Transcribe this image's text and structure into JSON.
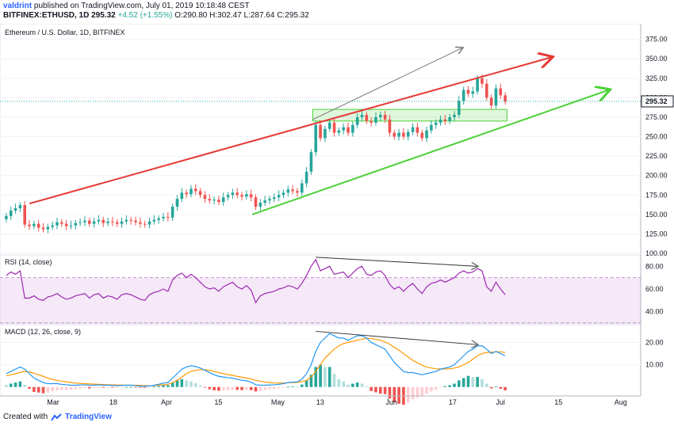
{
  "header": {
    "author": "valdrint",
    "published": "published on TradingView.com, July 01, 2019 10:18:48 CEST",
    "symbol": "BITFINEX:ETHUSD, 1D",
    "last": "295.32",
    "change": "+4.52 (+1.55%)",
    "ohlc": "O:290.80 H:302.47 L:287.64 C:295.32"
  },
  "footer": {
    "created_with": "Created with",
    "brand": "TradingView"
  },
  "colors": {
    "up": "#26a69a",
    "down": "#ef5350",
    "red_line": "#e53935",
    "green_line": "#4cd137",
    "rsi": "#9c27b0",
    "macd": "#2196f3",
    "signal": "#ff9800"
  },
  "chart_data": [
    {
      "type": "candlestick",
      "title": "Ethereum / U.S. Dollar, 1D, BITFINEX",
      "y_ticks": [
        "375.00",
        "350.00",
        "325.00",
        "300.00",
        "275.00",
        "250.00",
        "225.00",
        "200.00",
        "175.00",
        "150.00",
        "125.00",
        "100.00"
      ],
      "ylim": [
        100,
        395
      ],
      "last_price_label": "295.32",
      "x_ticks": [
        "Mar",
        "18",
        "Apr",
        "15",
        "May",
        "13",
        "Jun",
        "17",
        "Jul",
        "15",
        "Aug"
      ],
      "closes": [
        148,
        155,
        158,
        162,
        137,
        135,
        138,
        133,
        131,
        134,
        136,
        140,
        138,
        135,
        136,
        139,
        140,
        142,
        138,
        141,
        143,
        139,
        141,
        140,
        138,
        141,
        143,
        142,
        140,
        138,
        137,
        141,
        143,
        145,
        147,
        146,
        160,
        170,
        178,
        176,
        183,
        180,
        175,
        170,
        168,
        169,
        166,
        172,
        175,
        178,
        175,
        173,
        176,
        172,
        160,
        165,
        168,
        170,
        172,
        175,
        178,
        182,
        180,
        178,
        190,
        205,
        230,
        265,
        248,
        260,
        268,
        255,
        258,
        262,
        255,
        265,
        275,
        278,
        270,
        268,
        275,
        278,
        272,
        255,
        250,
        255,
        250,
        256,
        262,
        255,
        248,
        258,
        265,
        268,
        272,
        270,
        275,
        278,
        296,
        310,
        305,
        308,
        325,
        318,
        300,
        290,
        312,
        303,
        295
      ],
      "annotations": {
        "red_trendline": [
          [
            0.04,
            164
          ],
          [
            0.86,
            352
          ]
        ],
        "green_trendline": [
          [
            0.39,
            150
          ],
          [
            0.95,
            310
          ]
        ],
        "grey_arrow": [
          [
            0.485,
            272
          ],
          [
            0.72,
            364
          ]
        ],
        "green_box": [
          [
            0.485,
            270
          ],
          [
            0.79,
            285
          ]
        ]
      }
    },
    {
      "type": "line",
      "title": "RSI (14, close)",
      "y_ticks": [
        "80.00",
        "60.00",
        "40.00"
      ],
      "ylim": [
        30,
        90
      ],
      "band": [
        30,
        70
      ],
      "values": [
        72,
        75,
        73,
        76,
        52,
        52,
        54,
        51,
        50,
        53,
        54,
        56,
        53,
        51,
        52,
        54,
        55,
        56,
        52,
        55,
        56,
        52,
        54,
        53,
        51,
        55,
        56,
        55,
        53,
        51,
        50,
        55,
        57,
        58,
        60,
        58,
        68,
        72,
        74,
        70,
        73,
        70,
        66,
        62,
        60,
        61,
        58,
        62,
        64,
        66,
        62,
        60,
        63,
        59,
        48,
        54,
        56,
        57,
        58,
        60,
        61,
        63,
        62,
        60,
        65,
        72,
        80,
        86,
        76,
        78,
        80,
        73,
        74,
        75,
        70,
        74,
        78,
        80,
        73,
        72,
        75,
        76,
        72,
        64,
        60,
        62,
        58,
        62,
        65,
        60,
        56,
        62,
        65,
        66,
        68,
        66,
        68,
        70,
        74,
        76,
        74,
        75,
        78,
        76,
        62,
        58,
        66,
        60,
        55
      ]
    },
    {
      "type": "macd",
      "title": "MACD (12, 26, close, 9)",
      "y_ticks": [
        "20.00",
        "10.00"
      ],
      "ylim": [
        -4,
        28
      ],
      "macd": [
        6,
        7,
        8,
        9,
        8,
        6,
        4,
        3,
        2,
        1.5,
        1.5,
        1.5,
        1.2,
        1,
        0.8,
        0.8,
        0.9,
        1,
        0.8,
        0.8,
        1,
        0.8,
        0.8,
        0.7,
        0.6,
        0.7,
        0.8,
        0.8,
        0.6,
        0.4,
        0.3,
        0.5,
        0.8,
        1.2,
        1.8,
        2,
        4,
        6,
        8,
        9,
        9.5,
        9.2,
        8.5,
        7.5,
        6.5,
        5.5,
        4.8,
        4.5,
        4.2,
        4,
        3.5,
        3,
        2.8,
        2.2,
        1,
        0.8,
        0.8,
        0.9,
        1,
        1.2,
        1.5,
        2,
        2.2,
        2.3,
        3.5,
        6,
        10,
        16,
        20,
        22,
        24,
        23,
        22,
        22,
        21,
        22,
        23,
        23,
        22,
        20,
        19,
        18,
        17,
        14,
        11,
        9,
        7,
        6.5,
        6.5,
        6,
        5.5,
        6,
        6.5,
        7,
        8,
        8.5,
        9,
        10,
        12,
        14,
        16,
        17,
        18.5,
        18.5,
        17,
        15,
        16,
        15,
        14
      ],
      "signal": [
        5,
        5.5,
        6,
        6.5,
        7,
        6.8,
        6.2,
        5.5,
        4.8,
        4,
        3.4,
        3,
        2.6,
        2.3,
        2,
        1.8,
        1.6,
        1.5,
        1.4,
        1.3,
        1.2,
        1.1,
        1,
        1,
        0.9,
        0.9,
        0.8,
        0.8,
        0.8,
        0.7,
        0.6,
        0.6,
        0.6,
        0.8,
        1,
        1.2,
        2,
        3,
        4.5,
        6,
        7,
        7.5,
        7.8,
        7.8,
        7.5,
        7,
        6.5,
        6,
        5.6,
        5.2,
        4.8,
        4.4,
        4,
        3.6,
        3,
        2.6,
        2.2,
        2,
        1.8,
        1.8,
        1.8,
        1.9,
        2,
        2.1,
        2.4,
        3,
        4.5,
        7,
        10,
        13,
        15,
        17,
        18.5,
        19.5,
        20,
        20.5,
        21,
        21.5,
        21.8,
        21.8,
        21.4,
        21,
        20.2,
        19.2,
        17.8,
        16.5,
        15,
        13.5,
        12,
        10.8,
        9.8,
        9,
        8.5,
        8.2,
        8.1,
        8.1,
        8.2,
        8.5,
        9,
        10,
        11,
        12.5,
        14,
        15,
        15.5,
        15.6,
        15.8,
        15.8,
        15.5
      ]
    }
  ]
}
